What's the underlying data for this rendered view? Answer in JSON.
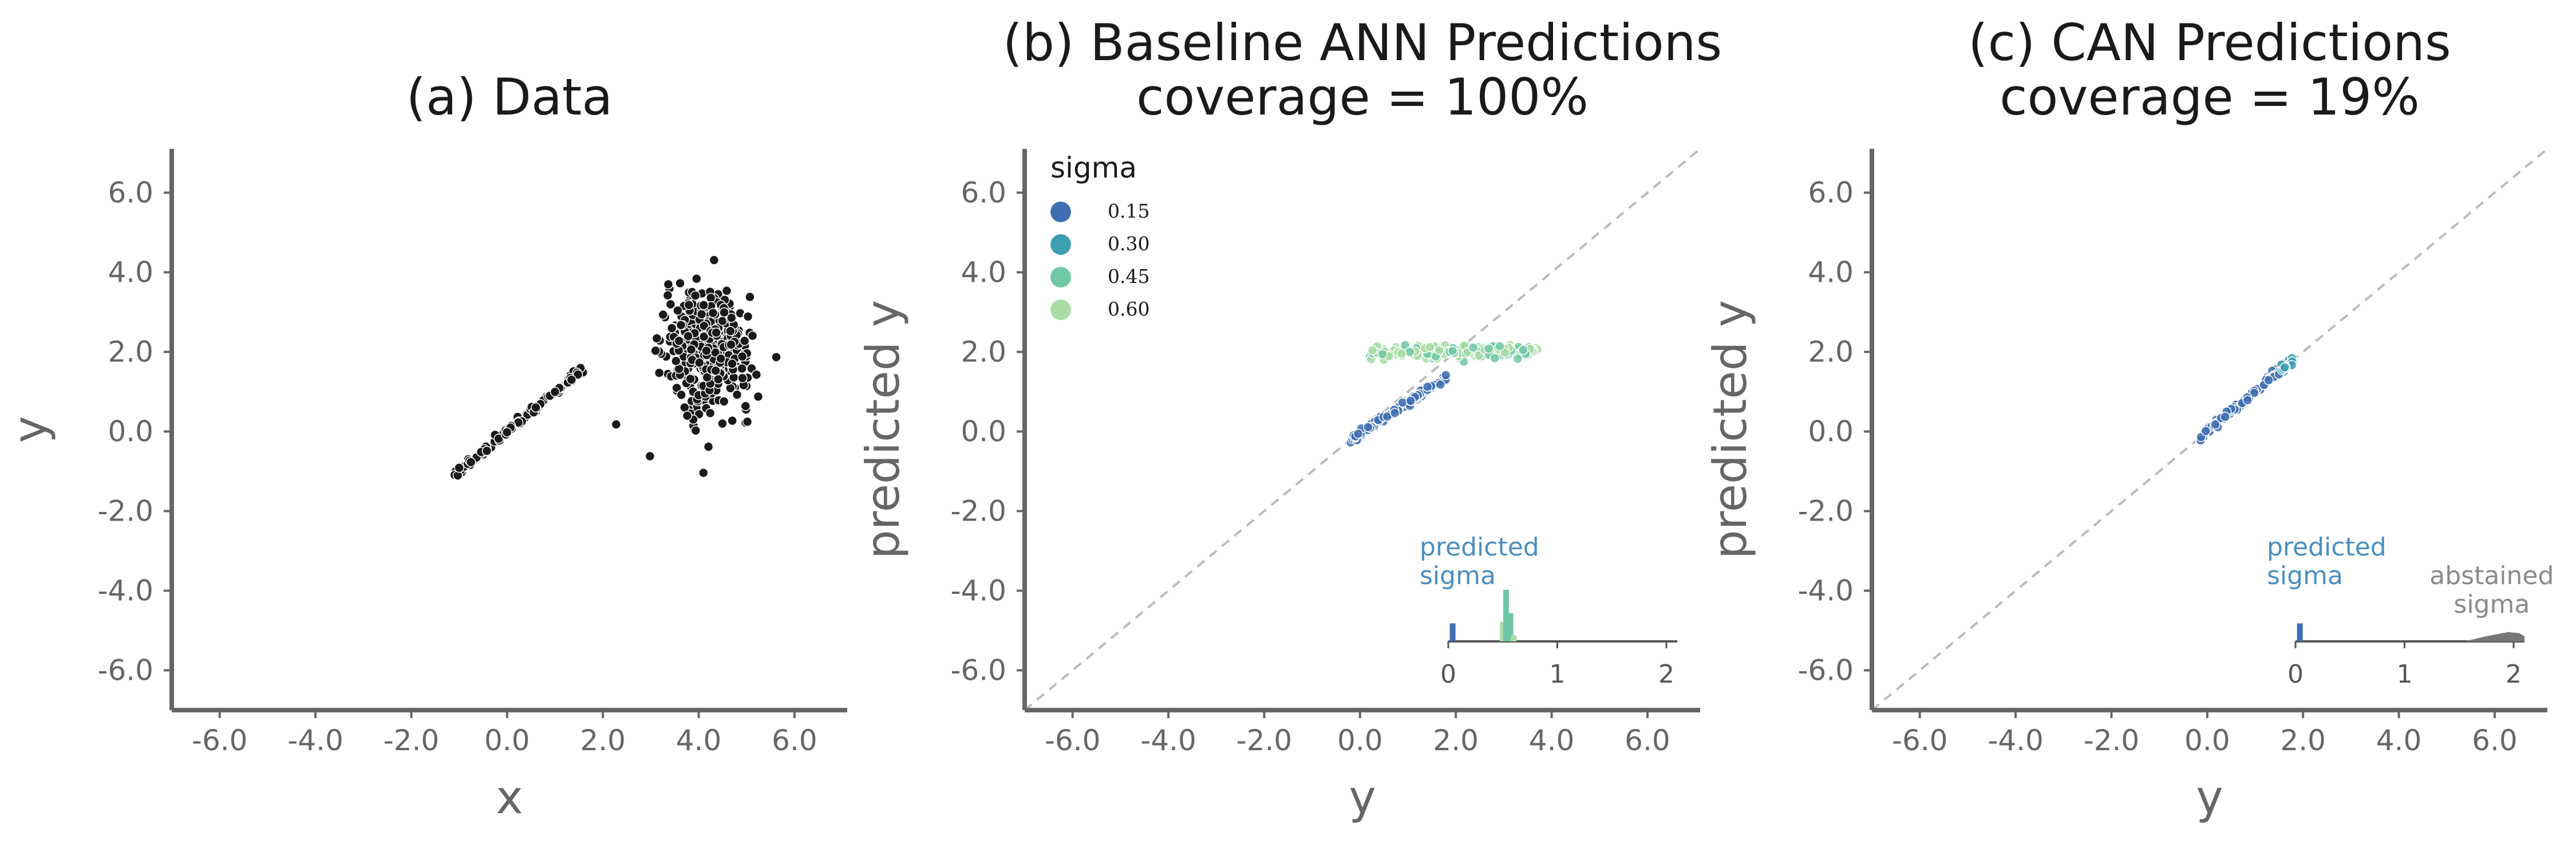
{
  "colors": {
    "axis": "#666666",
    "scatter": "#1a1a1a",
    "diag": "#bbbbbb",
    "sigma": [
      "#3f6fb0",
      "#3e9fb4",
      "#6fc7a6",
      "#a8dca4"
    ],
    "abstained": "#777777",
    "predicted_label": "#4a8fc0",
    "abstained_label": "#8a8a8a"
  },
  "chart_data": [
    {
      "type": "scatter",
      "title": [
        "(a) Data"
      ],
      "xlabel": "x",
      "ylabel": "y",
      "xlim": [
        -7,
        7.1
      ],
      "ylim": [
        -7,
        7.1
      ],
      "xticks": [
        -6,
        -4,
        -2,
        0,
        2,
        4,
        6
      ],
      "yticks": [
        -6,
        -4,
        -2,
        0,
        2,
        4,
        6
      ],
      "tick_labels": [
        "-6.0",
        "-4.0",
        "-2.0",
        "0.0",
        "2.0",
        "4.0",
        "6.0"
      ],
      "grid": false,
      "series": [
        {
          "name": "line cluster",
          "x_range": [
            -1.1,
            1.6
          ],
          "y_equals_x": true,
          "n": 120
        },
        {
          "name": "blob cluster",
          "center": [
            4.2,
            2.0
          ],
          "spread": [
            0.45,
            0.75
          ],
          "n": 420
        }
      ]
    },
    {
      "type": "scatter",
      "title": [
        "(b) Baseline ANN Predictions",
        "coverage = 100%"
      ],
      "xlabel": "y",
      "ylabel": "predicted y",
      "xlim": [
        -7,
        7.1
      ],
      "ylim": [
        -7,
        7.1
      ],
      "xticks": [
        -6,
        -4,
        -2,
        0,
        2,
        4,
        6
      ],
      "yticks": [
        -6,
        -4,
        -2,
        0,
        2,
        4,
        6
      ],
      "tick_labels": [
        "-6.0",
        "-4.0",
        "-2.0",
        "0.0",
        "2.0",
        "4.0",
        "6.0"
      ],
      "diagonal": true,
      "legend": {
        "title": "sigma",
        "position": "top-left",
        "entries": [
          {
            "label": "0.15",
            "color_index": 0
          },
          {
            "label": "0.30",
            "color_index": 1
          },
          {
            "label": "0.45",
            "color_index": 2
          },
          {
            "label": "0.60",
            "color_index": 3
          }
        ]
      },
      "series": [
        {
          "name": "line cluster",
          "x_range": [
            -0.2,
            1.8
          ],
          "y_min": -0.2,
          "y_max": 1.35,
          "sigma_index": 0,
          "n": 110
        },
        {
          "name": "blob cluster",
          "x_range": [
            0.2,
            3.7
          ],
          "y_center": 2.0,
          "sigma_index": 3,
          "n": 180
        }
      ],
      "inset": {
        "label": [
          "predicted",
          "sigma"
        ],
        "xticks": [
          0,
          1,
          2
        ],
        "xlim": [
          0,
          2.1
        ],
        "predicted_bars": [
          {
            "x": 0.04,
            "height": 0.35,
            "color_index": 0
          },
          {
            "x": 0.5,
            "height": 0.38,
            "color_index": 3
          },
          {
            "x": 0.53,
            "height": 1.0,
            "color_index": 2
          },
          {
            "x": 0.57,
            "height": 0.55,
            "color_index": 2
          },
          {
            "x": 0.6,
            "height": 0.12,
            "color_index": 3
          }
        ]
      }
    },
    {
      "type": "scatter",
      "title": [
        "(c) CAN Predictions",
        "coverage = 19%"
      ],
      "xlabel": "y",
      "ylabel": "predicted y",
      "xlim": [
        -7,
        7.1
      ],
      "ylim": [
        -7,
        7.1
      ],
      "xticks": [
        -6,
        -4,
        -2,
        0,
        2,
        4,
        6
      ],
      "yticks": [
        -6,
        -4,
        -2,
        0,
        2,
        4,
        6
      ],
      "tick_labels": [
        "-6.0",
        "-4.0",
        "-2.0",
        "0.0",
        "2.0",
        "4.0",
        "6.0"
      ],
      "diagonal": true,
      "series": [
        {
          "name": "line cluster",
          "x_range": [
            -0.2,
            1.8
          ],
          "y_equals_x": true,
          "sigma_index": 0,
          "n": 110
        }
      ],
      "inset": {
        "label": [
          "predicted",
          "sigma"
        ],
        "abstained_label": [
          "abstained",
          "sigma"
        ],
        "xticks": [
          0,
          1,
          2
        ],
        "xlim": [
          0,
          2.1
        ],
        "predicted_bars": [
          {
            "x": 0.04,
            "height": 0.35,
            "color_index": 0
          }
        ],
        "abstained_area": [
          [
            1.55,
            0.0
          ],
          [
            1.65,
            0.05
          ],
          [
            1.75,
            0.1
          ],
          [
            1.85,
            0.14
          ],
          [
            1.95,
            0.18
          ],
          [
            2.05,
            0.16
          ],
          [
            2.1,
            0.1
          ]
        ]
      }
    }
  ]
}
